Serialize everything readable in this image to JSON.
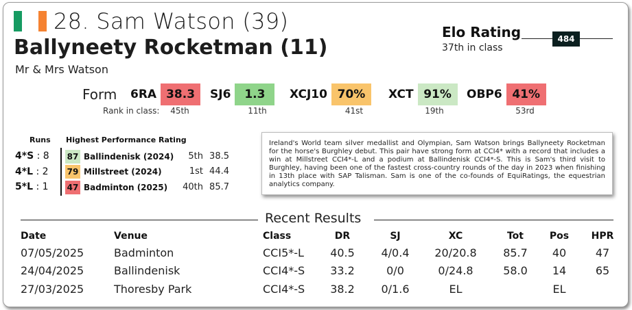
{
  "header": {
    "flag_colors": [
      "#169b62",
      "#ffffff",
      "#f58231"
    ],
    "rider": "28. Sam Watson (39)",
    "horse": "Ballyneety Rocketman (11)",
    "owner": "Mr & Mrs Watson"
  },
  "elo": {
    "title": "Elo Rating",
    "rank": "37th in class",
    "value": "484"
  },
  "form": {
    "label": "Form",
    "rank_label": "Rank in class:",
    "items": [
      {
        "name": "6RA",
        "value": "38.3",
        "rank": "45th",
        "color": "#ef6f72"
      },
      {
        "name": "SJ6",
        "value": "1.3",
        "rank": "11th",
        "color": "#8fd48a"
      },
      {
        "name": "XCJ10",
        "value": "70%",
        "rank": "41st",
        "color": "#f9c46b"
      },
      {
        "name": "XCT",
        "value": "91%",
        "rank": "19th",
        "color": "#cbe8c4"
      },
      {
        "name": "OBP6",
        "value": "41%",
        "rank": "53rd",
        "color": "#ef6f72"
      }
    ]
  },
  "runs": {
    "header": "Runs",
    "hpr_header": "Highest Performance Rating",
    "rows": [
      {
        "level": "4*S",
        "sep": ":",
        "count": "8",
        "score": "87",
        "score_color": "#cbe8c4",
        "event": "Ballindenisk (2024)",
        "pos": "5th",
        "hpr": "38.5"
      },
      {
        "level": "4*L",
        "sep": ":",
        "count": "2",
        "score": "79",
        "score_color": "#f9c46b",
        "event": "Millstreet (2024)",
        "pos": "1st",
        "hpr": "44.4"
      },
      {
        "level": "5*L",
        "sep": ":",
        "count": "1",
        "score": "47",
        "score_color": "#ef6f72",
        "event": "Badminton (2025)",
        "pos": "40th",
        "hpr": "85.7"
      }
    ]
  },
  "bio": "Ireland's World team silver medallist and Olympian, Sam Watson brings Ballyneety Rocketman for the horse's Burghley debut. This pair have strong form at CCI4* with a record that includes a win at Millstreet CCI4*-L and a podium at Ballindenisk CCI4*-S. This is Sam's third visit to Burghley, having been one of the fastest cross-country rounds of the day in 2023 when finishing in 13th place with SAP Talisman. Sam is one of the co-founds of EquiRatings, the equestrian analytics company.",
  "results": {
    "title": "Recent Results",
    "columns": [
      "Date",
      "Venue",
      "Class",
      "DR",
      "SJ",
      "XC",
      "Tot",
      "Pos",
      "HPR"
    ],
    "rows": [
      [
        "07/05/2025",
        "Badminton",
        "CCI5*-L",
        "40.5",
        "4/0.4",
        "20/20.8",
        "85.7",
        "40",
        "47"
      ],
      [
        "24/04/2025",
        "Ballindenisk",
        "CCI4*-S",
        "33.2",
        "0/0",
        "0/24.8",
        "58.0",
        "14",
        "65"
      ],
      [
        "27/03/2025",
        "Thoresby Park",
        "CCI4*-S",
        "38.2",
        "0/1.6",
        "EL",
        "",
        "EL",
        ""
      ]
    ]
  }
}
